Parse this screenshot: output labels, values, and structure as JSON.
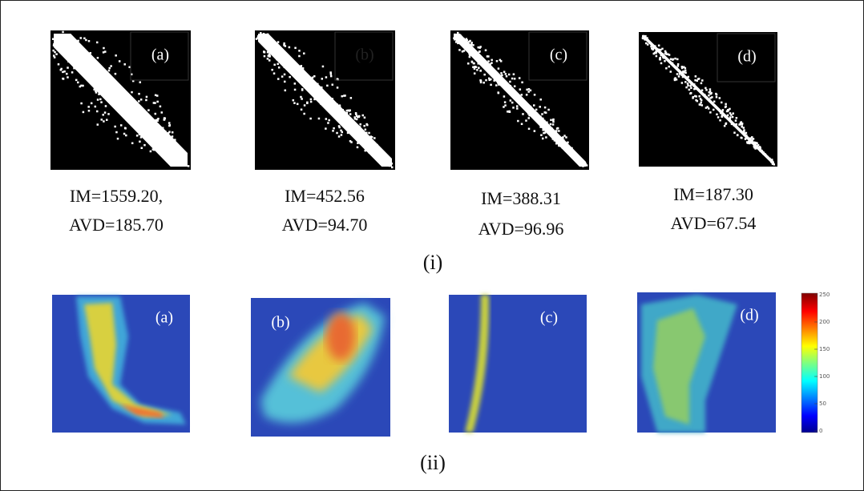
{
  "figure": {
    "row_i": {
      "label": "(i)",
      "panels": [
        {
          "label": "(a)",
          "caption": [
            "IM=1559.20,",
            "AVD=185.70"
          ]
        },
        {
          "label": "(b)",
          "caption": [
            "IM=452.56",
            "AVD=94.70"
          ]
        },
        {
          "label": "(c)",
          "caption": [
            "IM=388.31",
            "AVD=96.96"
          ]
        },
        {
          "label": "(d)",
          "caption": [
            "IM=187.30",
            "AVD=67.54"
          ]
        }
      ]
    },
    "row_ii": {
      "label": "(ii)",
      "panels": [
        {
          "label": "(a)"
        },
        {
          "label": "(b)"
        },
        {
          "label": "(c)"
        },
        {
          "label": "(d)"
        }
      ],
      "colorbar": {
        "ticks": [
          0,
          50,
          100,
          150,
          200,
          250
        ]
      }
    }
  }
}
